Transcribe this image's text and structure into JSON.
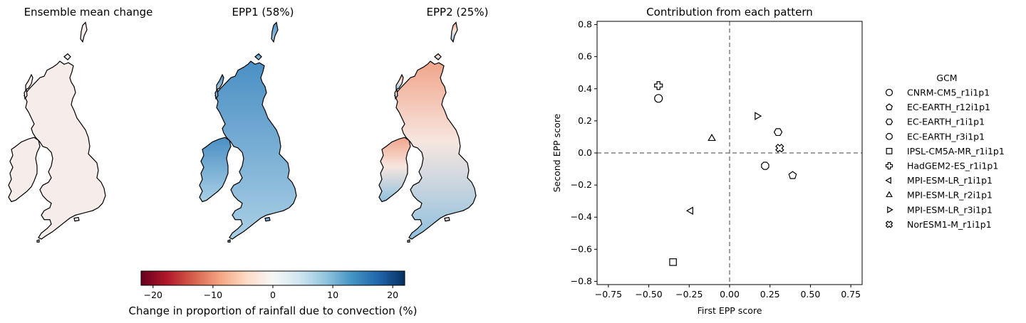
{
  "maps": [
    {
      "title": "Ensemble mean change",
      "fill": "mean"
    },
    {
      "title": "EPP1 (58%)",
      "fill": "epp1"
    },
    {
      "title": "EPP2 (25%)",
      "fill": "epp2"
    }
  ],
  "colors": {
    "cmap": [
      "#67001f",
      "#b2182b",
      "#d6604d",
      "#f4a582",
      "#fddbc7",
      "#f7f7f7",
      "#d1e5f0",
      "#92c5de",
      "#4393c3",
      "#2166ac",
      "#053061"
    ],
    "mean_fill": "#f6ecea",
    "epp1_north": "#4a8fc4",
    "epp1_south": "#a9cfe5",
    "epp2_north": "#f0a48a",
    "epp2_south": "#8fc0dd",
    "axis": "#000000",
    "zero_line": "#808080"
  },
  "colorbar": {
    "label": "Change in proportion of rainfall due to convection (%)",
    "ticks": [
      "−20",
      "−10",
      "0",
      "10",
      "20"
    ],
    "range": [
      -22,
      22
    ]
  },
  "chart_data": {
    "type": "scatter",
    "title": "Contribution from each pattern",
    "xlabel": "First EPP score",
    "ylabel": "Second EPP score",
    "xlim": [
      -0.82,
      0.82
    ],
    "ylim": [
      -0.82,
      0.82
    ],
    "xticks": [
      "−0.75",
      "−0.50",
      "−0.25",
      "0.00",
      "0.25",
      "0.50",
      "0.75"
    ],
    "yticks": [
      "−0.8",
      "−0.6",
      "−0.4",
      "−0.2",
      "0.0",
      "0.2",
      "0.4",
      "0.6",
      "0.8"
    ],
    "grid": false,
    "zero_lines": true,
    "legend_title": "GCM",
    "legend_position": "right, outside",
    "series": [
      {
        "name": "CNRM-CM5_r1i1p1",
        "marker": "circle",
        "x": -0.44,
        "y": 0.34
      },
      {
        "name": "EC-EARTH_r12i1p1",
        "marker": "pentagon",
        "x": 0.39,
        "y": -0.14
      },
      {
        "name": "EC-EARTH_r1i1p1",
        "marker": "hexagon",
        "x": 0.3,
        "y": 0.13
      },
      {
        "name": "EC-EARTH_r3i1p1",
        "marker": "octagon",
        "x": 0.22,
        "y": -0.08
      },
      {
        "name": "IPSL-CM5A-MR_r1i1p1",
        "marker": "square",
        "x": -0.35,
        "y": -0.68
      },
      {
        "name": "HadGEM2-ES_r1i1p1",
        "marker": "plus",
        "x": -0.44,
        "y": 0.42
      },
      {
        "name": "MPI-ESM-LR_r1i1p1",
        "marker": "triangle-left",
        "x": -0.24,
        "y": -0.36
      },
      {
        "name": "MPI-ESM-LR_r2i1p1",
        "marker": "triangle-up",
        "x": -0.11,
        "y": 0.09
      },
      {
        "name": "MPI-ESM-LR_r3i1p1",
        "marker": "triangle-right",
        "x": 0.17,
        "y": 0.23
      },
      {
        "name": "NorESM1-M_r1i1p1",
        "marker": "x-filled",
        "x": 0.31,
        "y": 0.03
      }
    ]
  }
}
